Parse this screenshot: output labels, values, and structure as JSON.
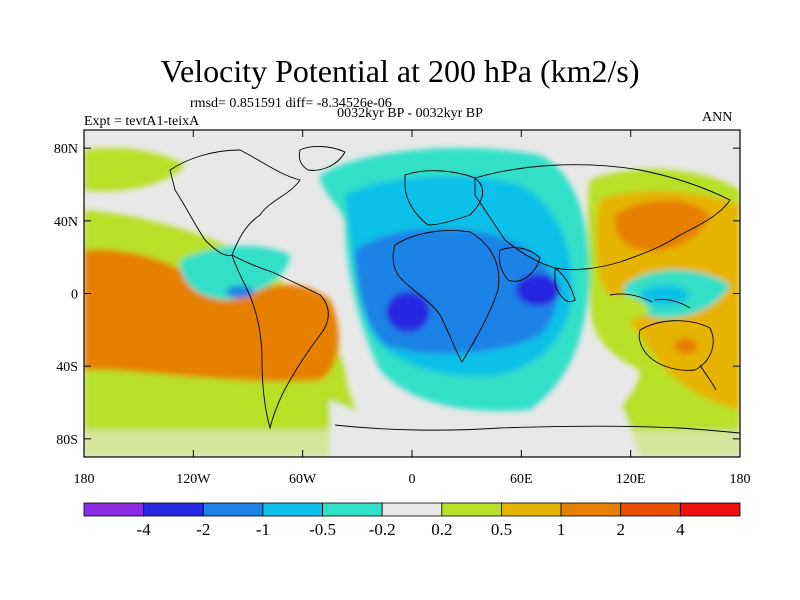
{
  "title": "Velocity Potential at 200 hPa (km2/s)",
  "stats": "rmsd= 0.851591 diff= -8.34526e-06",
  "expt": "Expt = tevtA1-teixA",
  "period": "0032kyr BP - 0032kyr BP",
  "season": "ANN",
  "map": {
    "lon_range": [
      -180,
      180
    ],
    "lat_range": [
      -90,
      90
    ],
    "lat_ticks": [
      {
        "value": 80,
        "label": "80N"
      },
      {
        "value": 40,
        "label": "40N"
      },
      {
        "value": 0,
        "label": "0"
      },
      {
        "value": -40,
        "label": "40S"
      },
      {
        "value": -80,
        "label": "80S"
      }
    ],
    "lon_ticks": [
      {
        "value": -180,
        "label": "180"
      },
      {
        "value": -120,
        "label": "120W"
      },
      {
        "value": -60,
        "label": "60W"
      },
      {
        "value": 0,
        "label": "0"
      },
      {
        "value": 60,
        "label": "60E"
      },
      {
        "value": 120,
        "label": "120E"
      },
      {
        "value": 180,
        "label": "180"
      }
    ]
  },
  "colorbar": {
    "colors": [
      "#8a2be2",
      "#2828e0",
      "#1e82e6",
      "#10c0e8",
      "#30e0c8",
      "#e8e8e8",
      "#b8e028",
      "#e6b400",
      "#e68000",
      "#e65000",
      "#f01010"
    ],
    "labels": [
      "-4",
      "-2",
      "-1",
      "-0.5",
      "-0.2",
      "0.2",
      "0.5",
      "1",
      "2",
      "4"
    ]
  }
}
